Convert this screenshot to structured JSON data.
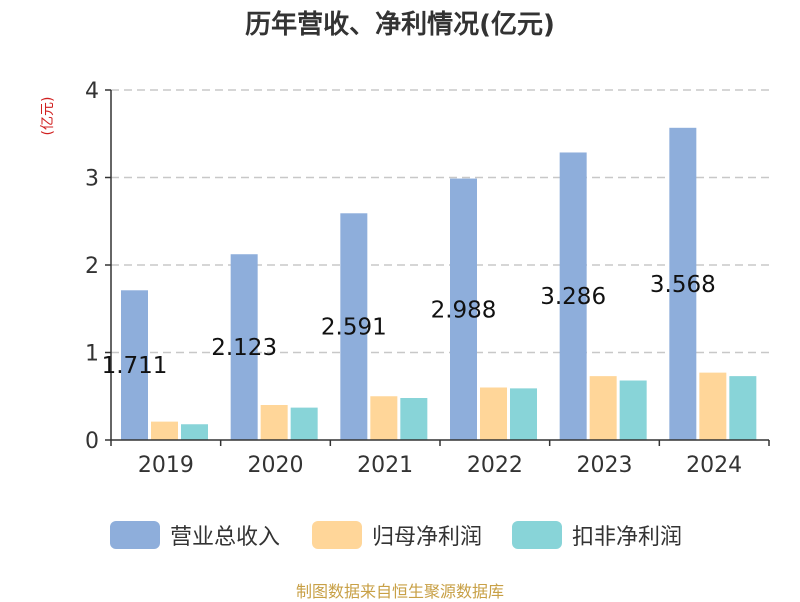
{
  "chart_data": {
    "type": "bar",
    "title": "历年营收、净利情况(亿元)",
    "ylabel": "(亿元)",
    "xlabel": "",
    "categories": [
      "2019",
      "2020",
      "2021",
      "2022",
      "2023",
      "2024"
    ],
    "ylim": [
      0,
      4
    ],
    "yticks": [
      0,
      1,
      2,
      3,
      4
    ],
    "grid": true,
    "legend_position": "bottom",
    "series": [
      {
        "name": "营业总收入",
        "color": "#8eaedb",
        "values": [
          1.711,
          2.123,
          2.591,
          2.988,
          3.286,
          3.568
        ],
        "data_labels": [
          "1.711",
          "2.123",
          "2.591",
          "2.988",
          "3.286",
          "3.568"
        ]
      },
      {
        "name": "归母净利润",
        "color": "#ffd699",
        "values": [
          0.21,
          0.4,
          0.5,
          0.6,
          0.73,
          0.77
        ]
      },
      {
        "name": "扣非净利润",
        "color": "#88d4d8",
        "values": [
          0.18,
          0.37,
          0.48,
          0.59,
          0.68,
          0.73
        ]
      }
    ]
  },
  "footer": {
    "source": "制图数据来自恒生聚源数据库"
  }
}
